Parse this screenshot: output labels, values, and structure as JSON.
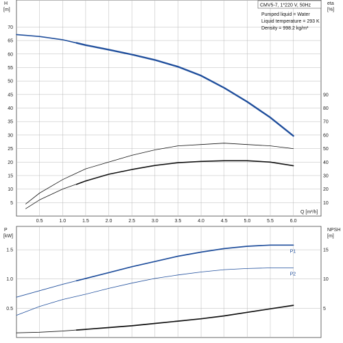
{
  "colors": {
    "highlight": "#1f4e9c",
    "dark": "#111111",
    "grid": "#b8b8b8",
    "frame": "#444444",
    "info_box": "#555555"
  },
  "chart_data": [
    {
      "type": "line",
      "panel": "top",
      "info": {
        "title": "CMV5-7, 1*220 V, 50Hz",
        "lines": [
          "Pumped liquid = Water",
          "Liquid temperature = 293 K",
          "Density = 998.2 kg/m³"
        ]
      },
      "left_axis": {
        "label": "H",
        "unit": "[m]",
        "range": [
          0,
          80
        ],
        "ticks": [
          5,
          10,
          15,
          20,
          25,
          30,
          35,
          40,
          45,
          50,
          55,
          60,
          65,
          70
        ]
      },
      "right_axis": {
        "label": "eta",
        "unit": "[%]",
        "range": [
          0,
          160
        ],
        "ticks": [
          10,
          20,
          30,
          40,
          50,
          60,
          70,
          80,
          90
        ]
      },
      "x_axis": {
        "label": "Q [m³/h]",
        "range": [
          0,
          6.6
        ],
        "ticks": [
          "0.5",
          "1.0",
          "1.5",
          "2.0",
          "2.5",
          "3.0",
          "3.5",
          "4.0",
          "4.5",
          "5.0",
          "5.5",
          "6.0"
        ],
        "tick_values": [
          0.5,
          1.0,
          1.5,
          2.0,
          2.5,
          3.0,
          3.5,
          4.0,
          4.5,
          5.0,
          5.5,
          6.0
        ]
      },
      "grid": true,
      "series": [
        {
          "key": "H",
          "axis": "left",
          "color": "#1f4e9c",
          "width": 1.6,
          "highlight_from": 1.3,
          "x": [
            0,
            0.5,
            1.0,
            1.5,
            2.0,
            2.5,
            3.0,
            3.5,
            4.0,
            4.5,
            5.0,
            5.5,
            6.0
          ],
          "y": [
            67.2,
            66.5,
            65.3,
            63.3,
            61.6,
            59.8,
            57.8,
            55.3,
            52.0,
            47.5,
            42.3,
            36.5,
            29.7
          ]
        },
        {
          "key": "eta_thin",
          "axis": "right",
          "color": "#111111",
          "width": 0.8,
          "x": [
            0.2,
            0.5,
            1.0,
            1.5,
            2.0,
            2.5,
            3.0,
            3.5,
            4.0,
            4.5,
            5.0,
            5.5,
            6.0
          ],
          "y": [
            9,
            17,
            27,
            35,
            40,
            45,
            49,
            52,
            53,
            54,
            53,
            52,
            50
          ]
        },
        {
          "key": "eta_thin2",
          "axis": "right",
          "color": "#111111",
          "width": 0.8,
          "x": [
            0.2,
            0.5,
            1.0,
            1.5,
            2.0,
            2.5,
            3.0,
            3.5,
            4.0,
            4.5,
            5.0,
            5.5,
            6.0
          ],
          "y": [
            5.5,
            12,
            20,
            26,
            31,
            34.5,
            37.5,
            39.5,
            40.5,
            41,
            41,
            40,
            37.3
          ]
        },
        {
          "key": "eta_bold",
          "axis": "right",
          "color": "#111111",
          "width": 1.6,
          "x": [
            1.3,
            1.5,
            2.0,
            2.5,
            3.0,
            3.5,
            4.0,
            4.5,
            5.0,
            5.5,
            6.0
          ],
          "y": [
            23.5,
            26,
            31,
            34.5,
            37.5,
            39.5,
            40.5,
            41,
            41,
            40,
            37.3
          ]
        }
      ]
    },
    {
      "type": "line",
      "panel": "bottom",
      "left_axis": {
        "label": "P",
        "unit": "[kW]",
        "range": [
          0,
          1.9
        ],
        "ticks": [
          "0.5",
          "1.0",
          "1.5"
        ],
        "tick_values": [
          0.5,
          1.0,
          1.5
        ]
      },
      "right_axis": {
        "label": "NPSH",
        "unit": "[m]",
        "range": [
          0,
          19
        ],
        "ticks": [
          5,
          10,
          15
        ]
      },
      "x_axis": {
        "range": [
          0,
          6.6
        ],
        "tick_values": [
          0.5,
          1.0,
          1.5,
          2.0,
          2.5,
          3.0,
          3.5,
          4.0,
          4.5,
          5.0,
          5.5,
          6.0
        ]
      },
      "grid": true,
      "series": [
        {
          "key": "P1",
          "axis": "left",
          "color": "#1f4e9c",
          "width": 0.9,
          "highlight_from": 1.3,
          "x": [
            0,
            0.5,
            1.0,
            1.5,
            2.0,
            2.5,
            3.0,
            3.5,
            4.0,
            4.5,
            5.0,
            5.5,
            6.0
          ],
          "y": [
            0.69,
            0.8,
            0.91,
            1.01,
            1.11,
            1.21,
            1.3,
            1.39,
            1.46,
            1.52,
            1.56,
            1.58,
            1.58
          ]
        },
        {
          "key": "P2",
          "axis": "left",
          "color": "#1f4e9c",
          "width": 0.8,
          "x": [
            0,
            0.5,
            1.0,
            1.5,
            2.0,
            2.5,
            3.0,
            3.5,
            4.0,
            4.5,
            5.0,
            5.5,
            6.0
          ],
          "y": [
            0.38,
            0.53,
            0.65,
            0.74,
            0.84,
            0.93,
            1.01,
            1.07,
            1.12,
            1.16,
            1.18,
            1.19,
            1.19
          ]
        },
        {
          "key": "NPSH",
          "axis": "right",
          "color": "#111111",
          "width": 0.9,
          "highlight_from": 1.3,
          "x": [
            0,
            0.5,
            1.0,
            1.5,
            2.0,
            2.5,
            3.0,
            3.5,
            4.0,
            4.5,
            5.0,
            5.5,
            6.0
          ],
          "y": [
            0.8,
            0.9,
            1.1,
            1.4,
            1.7,
            2.0,
            2.4,
            2.8,
            3.2,
            3.7,
            4.3,
            4.9,
            5.5
          ]
        }
      ],
      "labels": [
        {
          "text": "P1",
          "series": "P1"
        },
        {
          "text": "P2",
          "series": "P2"
        }
      ]
    }
  ]
}
